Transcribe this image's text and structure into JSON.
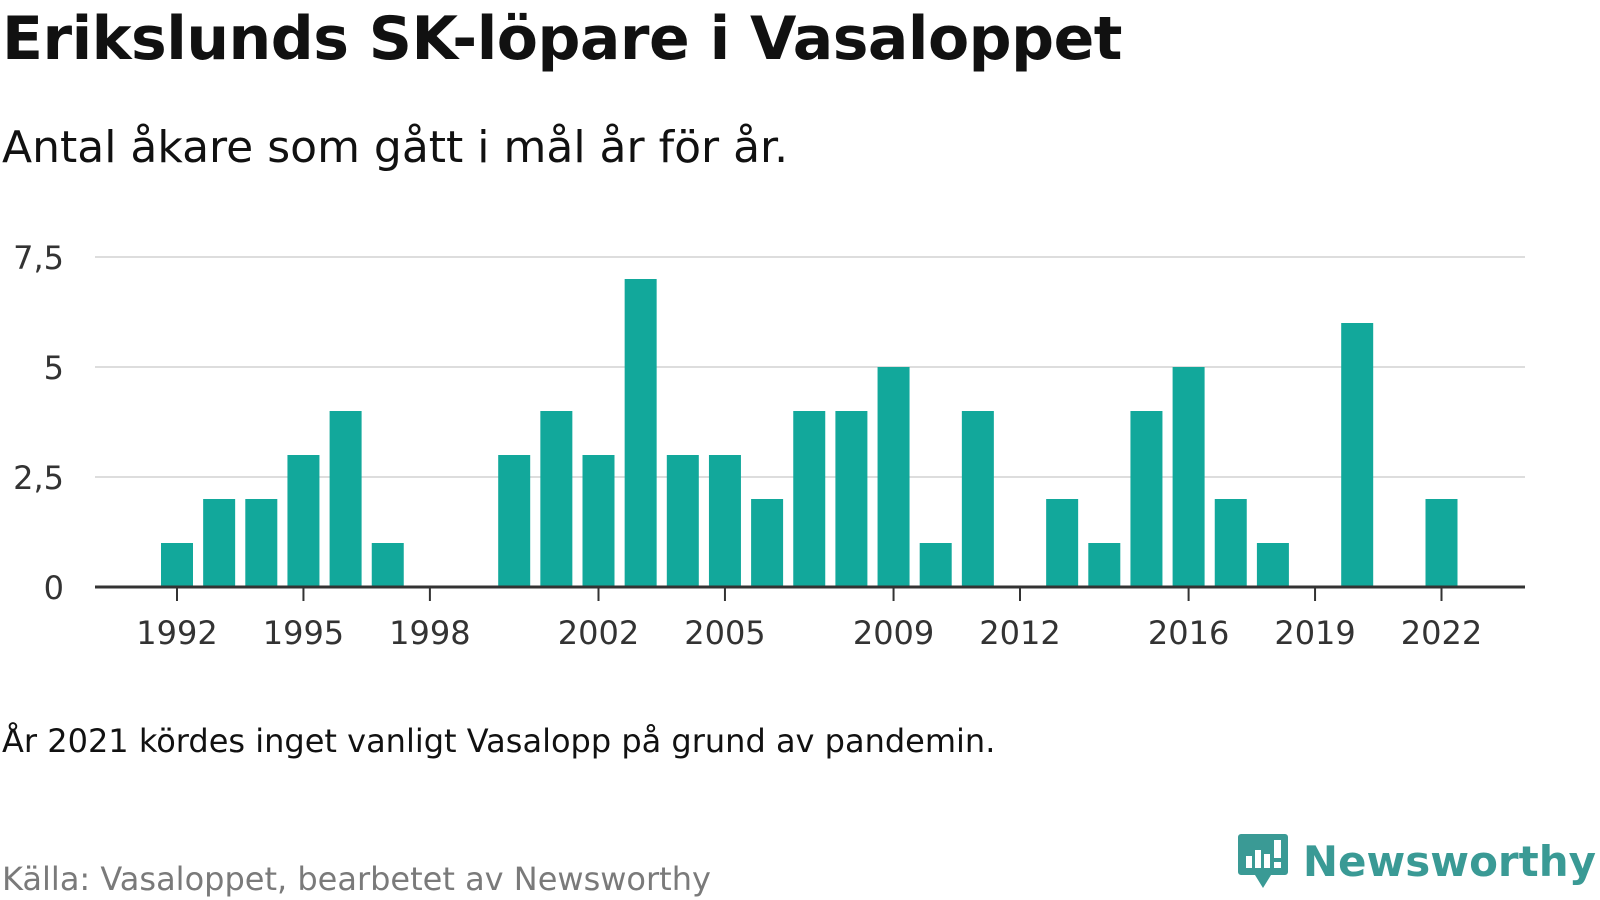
{
  "title": "Erikslunds SK-löpare i Vasaloppet",
  "subtitle": "Antal åkare som gått i mål år för år.",
  "note": "År 2021 kördes inget vanligt Vasalopp på grund av pandemin.",
  "source": "Källa: Vasaloppet, bearbetet av Newsworthy",
  "brand": {
    "name": "Newsworthy",
    "icon": "newsworthy-logo-icon",
    "color": "#3a9a95"
  },
  "colors": {
    "bar": "#12a89b",
    "grid": "#dddddd",
    "axis": "#333333",
    "tick_text": "#333333"
  },
  "chart_data": {
    "type": "bar",
    "title": "Erikslunds SK-löpare i Vasaloppet",
    "subtitle": "Antal åkare som gått i mål år för år.",
    "xlabel": "",
    "ylabel": "",
    "x": [
      1992,
      1993,
      1994,
      1995,
      1996,
      1997,
      1998,
      1999,
      2000,
      2001,
      2002,
      2003,
      2004,
      2005,
      2006,
      2007,
      2008,
      2009,
      2010,
      2011,
      2012,
      2013,
      2014,
      2015,
      2016,
      2017,
      2018,
      2019,
      2020,
      2021,
      2022
    ],
    "values": [
      1,
      2,
      2,
      3,
      4,
      1,
      0,
      0,
      3,
      4,
      3,
      7,
      3,
      3,
      2,
      4,
      4,
      5,
      1,
      4,
      0,
      2,
      1,
      4,
      5,
      2,
      1,
      0,
      6,
      0,
      2
    ],
    "ylim": [
      0,
      7.5
    ],
    "yticks": [
      0,
      2.5,
      5,
      7.5
    ],
    "ytick_labels": [
      "0",
      "2,5",
      "5",
      "7,5"
    ],
    "xticks": [
      1992,
      1995,
      1998,
      2002,
      2005,
      2009,
      2012,
      2016,
      2019,
      2022
    ],
    "xtick_labels": [
      "1992",
      "1995",
      "1998",
      "2002",
      "2005",
      "2009",
      "2012",
      "2016",
      "2019",
      "2022"
    ],
    "grid": "horizontal",
    "legend": "none"
  }
}
